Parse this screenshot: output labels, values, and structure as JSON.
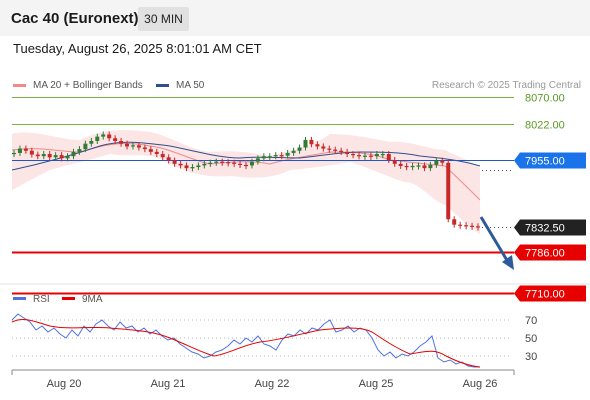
{
  "header": {
    "title": "Cac 40 (Euronext)",
    "timeframe": "30 MIN"
  },
  "datetime": "Tuesday, August 26, 2025 8:01:01 AM CET",
  "legend": [
    {
      "label": "MA 20 + Bollinger Bands",
      "color": "#f08a8a"
    },
    {
      "label": "MA 50",
      "color": "#2e4f8f"
    }
  ],
  "credit": "Research © 2025 Trading Central",
  "levels": [
    {
      "label": "8070.00",
      "value": 8070,
      "style": "green-line"
    },
    {
      "label": "8022.00",
      "value": 8022,
      "style": "green-line"
    },
    {
      "label": "7955.00",
      "value": 7955,
      "style": "blue-tag"
    },
    {
      "label": "7832.50",
      "value": 7832.5,
      "style": "price-tag"
    },
    {
      "label": "7786.00",
      "value": 7786,
      "style": "red-tag"
    },
    {
      "label": "7710.00",
      "value": 7710,
      "style": "red-tag"
    }
  ],
  "rsi_legend": [
    {
      "label": "RSI",
      "color": "#4e73df"
    },
    {
      "label": "9MA",
      "color": "#e60000"
    }
  ],
  "rsi_ticks": [
    "70",
    "50",
    "30"
  ],
  "x_labels": [
    "Aug 20",
    "Aug 21",
    "Aug 22",
    "Aug 25",
    "Aug 26"
  ],
  "colors": {
    "up": "#2e7d32",
    "down": "#c62828",
    "support": "#e60000",
    "resistance": "#7cb342",
    "ma50": "#2e4f8f",
    "arrow": "#2d5a9b"
  },
  "chart_data": [
    {
      "type": "candlestick",
      "title": "Cac 40 (Euronext)",
      "interval": "30 MIN",
      "categories": [
        "Aug 20",
        "Aug 21",
        "Aug 22",
        "Aug 25",
        "Aug 26"
      ],
      "price_close_series": [
        7968,
        7976,
        7972,
        7965,
        7962,
        7966,
        7960,
        7964,
        7958,
        7962,
        7970,
        7975,
        7985,
        7990,
        7998,
        8002,
        7995,
        7990,
        7985,
        7980,
        7982,
        7978,
        7975,
        7970,
        7966,
        7960,
        7954,
        7948,
        7945,
        7940,
        7942,
        7945,
        7948,
        7950,
        7952,
        7951,
        7950,
        7948,
        7946,
        7945,
        7952,
        7958,
        7962,
        7962,
        7964,
        7963,
        7968,
        7972,
        7978,
        7992,
        7984,
        7980,
        7976,
        7974,
        7972,
        7970,
        7966,
        7964,
        7962,
        7963,
        7962,
        7966,
        7966,
        7955,
        7948,
        7944,
        7942,
        7944,
        7945,
        7940,
        7946,
        7954,
        7950,
        7846,
        7836,
        7835,
        7834,
        7833,
        7832.5
      ],
      "levels": {
        "resistance": [
          8070,
          8022
        ],
        "pivot": 7955,
        "last": 7832.5,
        "support": [
          7786,
          7710
        ]
      },
      "rsi": {
        "name": "RSI",
        "ma_name": "9MA",
        "ticks": [
          70,
          50,
          30
        ],
        "ylim": [
          10,
          90
        ]
      }
    }
  ]
}
